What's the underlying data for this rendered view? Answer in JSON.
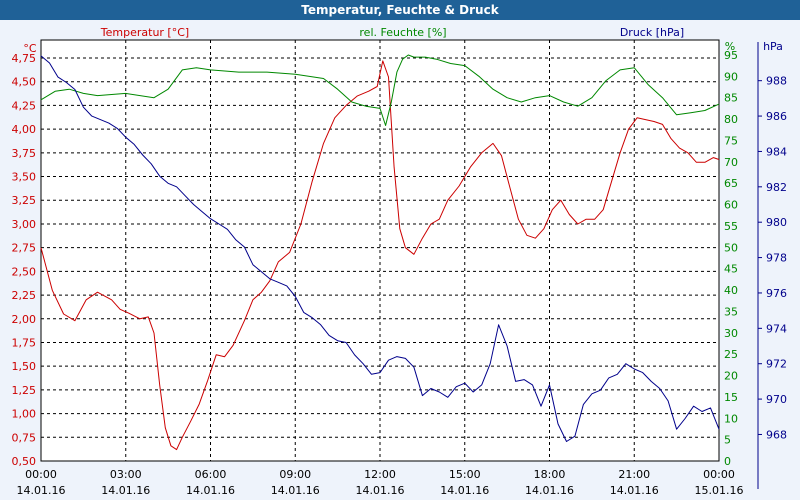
{
  "window": {
    "title": "Temperatur, Feuchte & Druck"
  },
  "chart_data": {
    "type": "line",
    "title": "Temperatur, Feuchte & Druck",
    "colors": {
      "temperature": "#cc0000",
      "humidity": "#008800",
      "pressure": "#00008b",
      "grid": "#000000",
      "background": "#ffffff"
    },
    "x_ticks": [
      {
        "time": "00:00",
        "date": "14.01.16"
      },
      {
        "time": "03:00",
        "date": "14.01.16"
      },
      {
        "time": "06:00",
        "date": "14.01.16"
      },
      {
        "time": "09:00",
        "date": "14.01.16"
      },
      {
        "time": "12:00",
        "date": "14.01.16"
      },
      {
        "time": "15:00",
        "date": "14.01.16"
      },
      {
        "time": "18:00",
        "date": "14.01.16"
      },
      {
        "time": "21:00",
        "date": "14.01.16"
      },
      {
        "time": "00:00",
        "date": "15.01.16"
      }
    ],
    "xlim_hours": [
      0,
      24
    ],
    "axes": {
      "temperature": {
        "label": "Temperatur [°C]",
        "unit": "°C",
        "ylim": [
          0.5,
          4.94
        ],
        "ticks": [
          "0,50",
          "0,75",
          "1,00",
          "1,25",
          "1,50",
          "1,75",
          "2,00",
          "2,25",
          "2,50",
          "2,75",
          "3,00",
          "3,25",
          "3,50",
          "3,75",
          "4,00",
          "4,25",
          "4,50",
          "4,75"
        ]
      },
      "humidity": {
        "label": "rel. Feuchte [%]",
        "unit": "%",
        "ylim": [
          0,
          98.5
        ],
        "ticks": [
          "0",
          "5",
          "10",
          "15",
          "20",
          "25",
          "30",
          "35",
          "40",
          "45",
          "50",
          "55",
          "60",
          "65",
          "70",
          "75",
          "80",
          "85",
          "90",
          "95"
        ]
      },
      "pressure": {
        "label": "Druck [hPa]",
        "unit": "hPa",
        "ylim": [
          966.5,
          990.3
        ],
        "ticks": [
          "968",
          "970",
          "972",
          "974",
          "976",
          "978",
          "980",
          "982",
          "984",
          "986",
          "988"
        ]
      }
    },
    "series": [
      {
        "name": "Temperatur [°C]",
        "axis": "temperature",
        "x": [
          0,
          0.4,
          0.8,
          1.2,
          1.6,
          2.0,
          2.5,
          2.8,
          3.1,
          3.5,
          3.8,
          4.0,
          4.2,
          4.4,
          4.6,
          4.8,
          5.0,
          5.3,
          5.6,
          5.9,
          6.2,
          6.5,
          6.8,
          7.2,
          7.5,
          7.8,
          8.1,
          8.4,
          8.8,
          9.2,
          9.6,
          10.0,
          10.4,
          10.8,
          11.2,
          11.6,
          11.9,
          12.1,
          12.3,
          12.5,
          12.7,
          12.9,
          13.2,
          13.5,
          13.8,
          14.1,
          14.4,
          14.8,
          15.2,
          15.6,
          16.0,
          16.3,
          16.6,
          16.9,
          17.2,
          17.5,
          17.8,
          18.1,
          18.4,
          18.7,
          19.0,
          19.3,
          19.6,
          19.9,
          20.2,
          20.5,
          20.8,
          21.1,
          21.4,
          21.7,
          22.0,
          22.3,
          22.6,
          22.9,
          23.2,
          23.5,
          23.8,
          24.0
        ],
        "values": [
          2.75,
          2.3,
          2.05,
          1.98,
          2.2,
          2.28,
          2.2,
          2.1,
          2.06,
          2.0,
          2.02,
          1.85,
          1.3,
          0.85,
          0.66,
          0.62,
          0.75,
          0.92,
          1.1,
          1.35,
          1.62,
          1.6,
          1.72,
          1.98,
          2.2,
          2.28,
          2.4,
          2.6,
          2.7,
          3.0,
          3.45,
          3.85,
          4.12,
          4.25,
          4.35,
          4.4,
          4.45,
          4.72,
          4.55,
          3.6,
          2.95,
          2.75,
          2.68,
          2.85,
          3.0,
          3.05,
          3.25,
          3.4,
          3.6,
          3.75,
          3.85,
          3.72,
          3.38,
          3.05,
          2.88,
          2.85,
          2.95,
          3.15,
          3.25,
          3.1,
          3.0,
          3.05,
          3.05,
          3.15,
          3.45,
          3.75,
          4.0,
          4.12,
          4.1,
          4.08,
          4.05,
          3.9,
          3.8,
          3.75,
          3.65,
          3.65,
          3.7,
          3.68
        ]
      },
      {
        "name": "rel. Feuchte [%]",
        "axis": "humidity",
        "x": [
          0,
          0.5,
          1.0,
          1.5,
          2.0,
          3.0,
          4.0,
          4.5,
          5.0,
          5.5,
          6.0,
          7.0,
          8.0,
          9.0,
          10.0,
          10.5,
          11.0,
          11.5,
          12.0,
          12.2,
          12.4,
          12.6,
          12.8,
          13.0,
          13.2,
          13.6,
          14.0,
          14.5,
          15.0,
          15.5,
          16.0,
          16.5,
          17.0,
          17.5,
          18.0,
          18.5,
          19.0,
          19.5,
          20.0,
          20.5,
          21.0,
          21.5,
          22.0,
          22.5,
          23.0,
          23.5,
          24.0
        ],
        "values": [
          84.5,
          86.5,
          87,
          86,
          85.5,
          86,
          85,
          87,
          91.5,
          92,
          91.5,
          91,
          91,
          90.5,
          89.5,
          87,
          84,
          83,
          82.5,
          78.5,
          84,
          91,
          94,
          95,
          94.5,
          94.5,
          94,
          93,
          92.5,
          90,
          87,
          85,
          84,
          85,
          85.5,
          84,
          83,
          85,
          89,
          91.5,
          92,
          88,
          85,
          81,
          81.5,
          82,
          83.5
        ]
      },
      {
        "name": "Druck [hPa]",
        "axis": "pressure",
        "x": [
          0,
          0.3,
          0.6,
          0.9,
          1.2,
          1.5,
          1.8,
          2.1,
          2.4,
          2.7,
          3.0,
          3.3,
          3.6,
          3.9,
          4.2,
          4.5,
          4.8,
          5.1,
          5.4,
          5.7,
          6.0,
          6.3,
          6.6,
          6.9,
          7.2,
          7.5,
          7.8,
          8.1,
          8.4,
          8.7,
          9.0,
          9.3,
          9.6,
          9.9,
          10.2,
          10.5,
          10.8,
          11.1,
          11.4,
          11.7,
          12.0,
          12.3,
          12.6,
          12.9,
          13.2,
          13.5,
          13.8,
          14.1,
          14.4,
          14.7,
          15.0,
          15.3,
          15.6,
          15.9,
          16.2,
          16.5,
          16.8,
          17.1,
          17.4,
          17.7,
          18.0,
          18.3,
          18.6,
          18.9,
          19.2,
          19.5,
          19.8,
          20.1,
          20.4,
          20.7,
          21.0,
          21.3,
          21.6,
          21.9,
          22.2,
          22.5,
          22.8,
          23.1,
          23.4,
          23.7,
          24.0
        ],
        "values": [
          989.4,
          989.0,
          988.2,
          987.9,
          987.5,
          986.5,
          986.0,
          985.8,
          985.6,
          985.3,
          984.8,
          984.4,
          983.8,
          983.3,
          982.6,
          982.2,
          982.0,
          981.5,
          981.0,
          980.6,
          980.2,
          979.9,
          979.6,
          979.0,
          978.6,
          977.6,
          977.2,
          976.8,
          976.6,
          976.4,
          975.8,
          974.9,
          974.6,
          974.2,
          973.6,
          973.3,
          973.2,
          972.5,
          972.0,
          971.4,
          971.5,
          972.2,
          972.4,
          972.3,
          971.8,
          970.2,
          970.6,
          970.4,
          970.1,
          970.7,
          970.9,
          970.4,
          970.8,
          972.0,
          974.2,
          973.0,
          971.0,
          971.1,
          970.8,
          969.6,
          970.8,
          968.6,
          967.6,
          967.9,
          969.7,
          970.3,
          970.5,
          971.2,
          971.4,
          972.0,
          971.7,
          971.5,
          971.0,
          970.6,
          969.9,
          968.3,
          968.9,
          969.6,
          969.3,
          969.5,
          968.3
        ]
      }
    ]
  }
}
